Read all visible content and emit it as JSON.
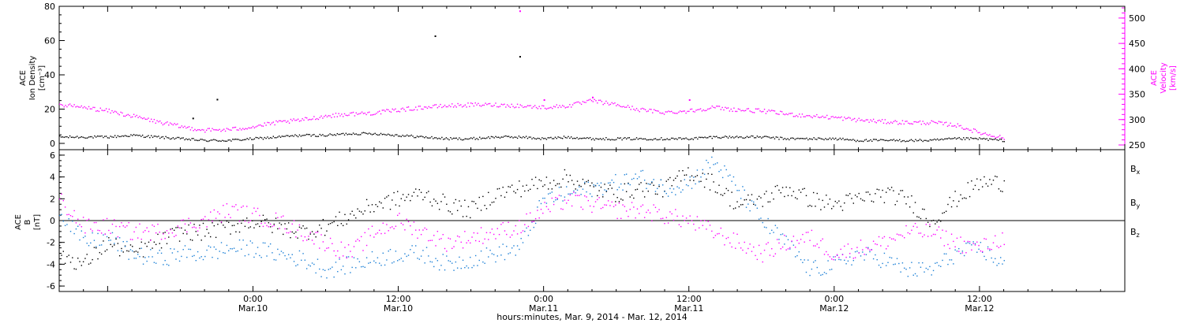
{
  "chart_data": [
    {
      "panel": "plasma",
      "type": "scatter",
      "ylabel_left": [
        "ACE",
        "Ion Density",
        "[cm⁻³]"
      ],
      "ylabel_right": [
        "ACE",
        "Velocity",
        "[km/s]"
      ],
      "ylim_left": [
        0,
        80
      ],
      "ylim_right": [
        250,
        520
      ],
      "yticks_left": [
        "0",
        "20",
        "40",
        "60",
        "80"
      ],
      "yticks_right": [
        "250",
        "300",
        "350",
        "400",
        "450",
        "500"
      ],
      "x_hours": [
        -16,
        -14,
        -12,
        -10,
        -8,
        -6,
        -4,
        -2,
        0,
        2,
        4,
        6,
        8,
        10,
        12,
        14,
        16,
        18,
        20,
        22,
        24,
        26,
        28,
        30,
        32,
        34,
        36,
        38,
        40,
        42,
        44,
        46,
        48,
        50,
        52,
        54,
        56,
        58,
        60,
        62
      ],
      "series": [
        {
          "axis": "left",
          "color": "#000000",
          "values": [
            4,
            4,
            4,
            5,
            4,
            3,
            2,
            2,
            3,
            4,
            5,
            5,
            6,
            6,
            5,
            4,
            3,
            3,
            4,
            4,
            3,
            4,
            3,
            3,
            3,
            3,
            3,
            4,
            4,
            4,
            3,
            3,
            3,
            2,
            2,
            2,
            2,
            3,
            3,
            2
          ],
          "outliers": [
            [
              15,
              63
            ],
            [
              22,
              51
            ],
            [
              -3,
              26
            ],
            [
              -5,
              15
            ]
          ]
        },
        {
          "axis": "right",
          "color": "#ff00ff",
          "values": [
            330,
            325,
            318,
            308,
            297,
            287,
            280,
            281,
            287,
            295,
            300,
            308,
            312,
            314,
            320,
            325,
            328,
            330,
            330,
            328,
            325,
            328,
            338,
            330,
            320,
            315,
            318,
            325,
            320,
            318,
            312,
            308,
            305,
            300,
            297,
            295,
            295,
            290,
            275,
            265
          ],
          "outliers": [
            [
              22,
              515
            ],
            [
              24,
              340
            ],
            [
              28,
              345
            ],
            [
              36,
              340
            ]
          ]
        }
      ]
    },
    {
      "panel": "magnetic",
      "type": "scatter",
      "ylabel": [
        "ACE",
        "B",
        "[nT]"
      ],
      "ylim": [
        -6.5,
        6.5
      ],
      "yticks": [
        "-6",
        "-4",
        "-2",
        "0",
        "2",
        "4",
        "6"
      ],
      "zero_line": true,
      "x_hours": [
        -16,
        -14,
        -12,
        -10,
        -8,
        -6,
        -4,
        -2,
        0,
        2,
        4,
        6,
        8,
        10,
        12,
        14,
        16,
        18,
        20,
        22,
        24,
        26,
        28,
        30,
        32,
        34,
        36,
        38,
        40,
        42,
        44,
        46,
        48,
        50,
        52,
        54,
        56,
        58,
        60,
        62
      ],
      "series": [
        {
          "name": "Bx",
          "color": "#000000",
          "values": [
            -3,
            -4,
            -2,
            -3,
            -2,
            -1,
            -1,
            -0.5,
            0,
            -0.5,
            -1,
            -0.5,
            0.5,
            1.5,
            2,
            2.5,
            1.5,
            1,
            2.5,
            3,
            3.5,
            4,
            3,
            2.5,
            3,
            3,
            4.5,
            3.5,
            1.5,
            2,
            3,
            2,
            1.5,
            2,
            2.5,
            2,
            0,
            2,
            3.5,
            3.5
          ]
        },
        {
          "name": "By",
          "color": "#1a7fd6",
          "values": [
            1,
            -2,
            -1.5,
            -3,
            -3.5,
            -3,
            -3,
            -2.5,
            -2.5,
            -3,
            -3.5,
            -4.5,
            -4,
            -3.5,
            -3,
            -3,
            -4,
            -3.5,
            -3,
            -2.5,
            2,
            2.5,
            3,
            3.5,
            4,
            3,
            3.5,
            5.5,
            3,
            0,
            -2,
            -4.5,
            -4,
            -3,
            -3.5,
            -4.5,
            -4.5,
            -3,
            -2.5,
            -4
          ]
        },
        {
          "name": "Bz",
          "color": "#ff00ff",
          "values": [
            2,
            -0.5,
            -0.5,
            -1,
            -1,
            -0.5,
            0,
            1,
            0.5,
            0,
            -1,
            -2,
            -3,
            -1,
            0,
            -1,
            -2,
            -1.5,
            -1,
            -0.5,
            1,
            2,
            1.5,
            1,
            1,
            0.5,
            0,
            -1,
            -2,
            -3,
            -2,
            -1.5,
            -3,
            -2.5,
            -2,
            -1,
            -1,
            -2,
            -2.5,
            -1.5
          ]
        }
      ],
      "legend": [
        {
          "text": "B",
          "sub": "x",
          "color": "#000000"
        },
        {
          "text": "B",
          "sub": "y",
          "color": "#1a7fd6"
        },
        {
          "text": "B",
          "sub": "z",
          "color": "#ff00ff"
        }
      ]
    }
  ],
  "x_axis": {
    "xlim_hours": [
      -16,
      72
    ],
    "tick_labels": [
      {
        "hour": 0,
        "time": "0:00",
        "date": "Mar.10"
      },
      {
        "hour": 12,
        "time": "12:00",
        "date": "Mar.10"
      },
      {
        "hour": 24,
        "time": "0:00",
        "date": "Mar.11"
      },
      {
        "hour": 36,
        "time": "12:00",
        "date": "Mar.11"
      },
      {
        "hour": 48,
        "time": "0:00",
        "date": "Mar.12"
      },
      {
        "hour": 60,
        "time": "12:00",
        "date": "Mar.12"
      }
    ],
    "title": "hours:minutes, Mar.  9, 2014 - Mar. 12, 2014"
  }
}
